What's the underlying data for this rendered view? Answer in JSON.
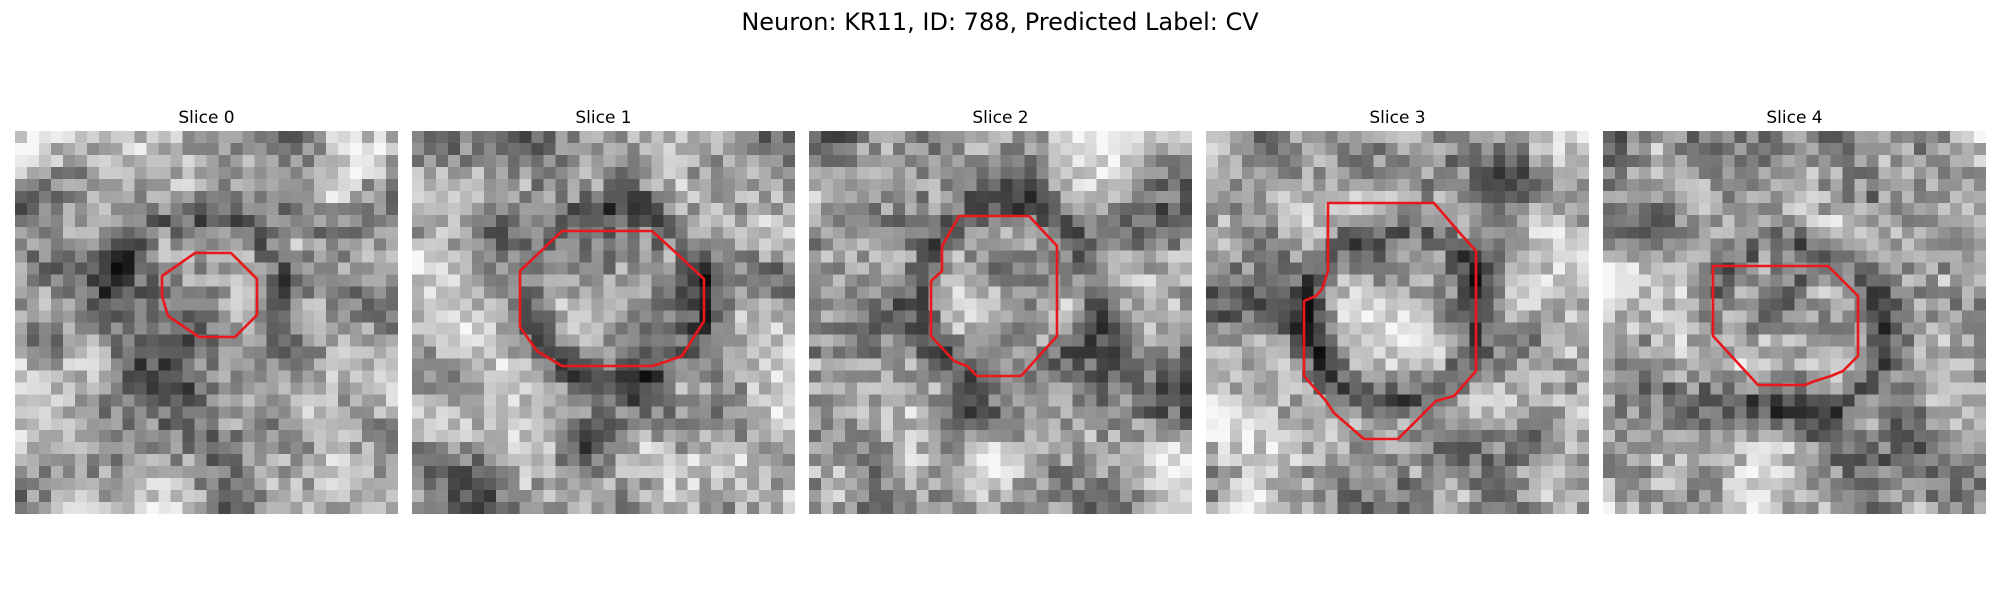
{
  "figure": {
    "title": "Neuron: KR11, ID: 788, Predicted Label: CV"
  },
  "slices": [
    {
      "label": "Slice 0",
      "seed": 11,
      "center": [
        0.47,
        0.45
      ],
      "ring_dark": 0.28,
      "inner_dark": 0.3
    },
    {
      "label": "Slice 1",
      "seed": 23,
      "center": [
        0.54,
        0.43
      ],
      "ring_dark": 0.32,
      "inner_dark": 0.0
    },
    {
      "label": "Slice 2",
      "seed": 37,
      "center": [
        0.52,
        0.42
      ],
      "ring_dark": 0.3,
      "inner_dark": -0.1
    },
    {
      "label": "Slice 3",
      "seed": 49,
      "center": [
        0.49,
        0.48
      ],
      "ring_dark": 0.34,
      "inner_dark": -0.05
    },
    {
      "label": "Slice 4",
      "seed": 61,
      "center": [
        0.5,
        0.52
      ],
      "ring_dark": 0.3,
      "inner_dark": -0.05
    }
  ],
  "colors": {
    "contour": "#e8181c"
  },
  "icons": {
    "pixel_map": "grayscale-pixel-map",
    "roi": "red-octagon-contour"
  }
}
